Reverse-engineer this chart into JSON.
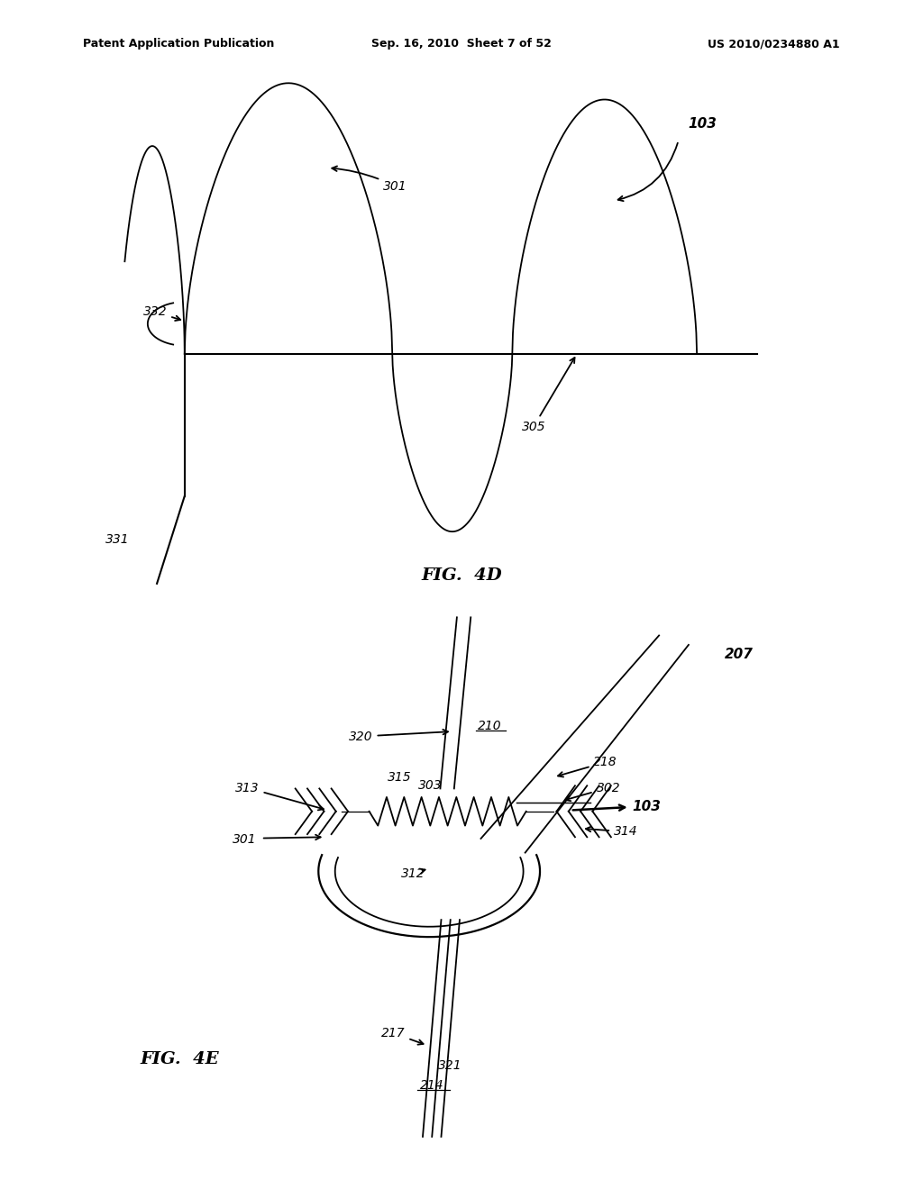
{
  "background_color": "#ffffff",
  "header_left": "Patent Application Publication",
  "header_center": "Sep. 16, 2010  Sheet 7 of 52",
  "header_right": "US 2010/0234880 A1",
  "fig4d_label": "FIG.  4D",
  "fig4e_label": "FIG.  4E"
}
